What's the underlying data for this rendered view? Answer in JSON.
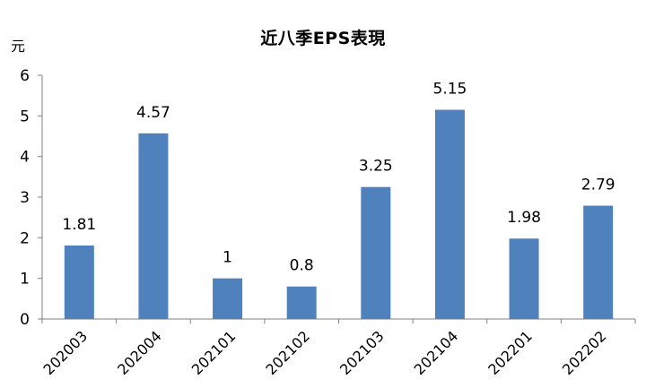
{
  "chart_data": {
    "type": "bar",
    "title": "近八季EPS表現",
    "ylabel": "元",
    "xlabel": "",
    "categories": [
      "202003",
      "202004",
      "202101",
      "202102",
      "202103",
      "202104",
      "202201",
      "202202"
    ],
    "values": [
      1.81,
      4.57,
      1,
      0.8,
      3.25,
      5.15,
      1.98,
      2.79
    ],
    "value_labels": [
      "1.81",
      "4.57",
      "1",
      "0.8",
      "3.25",
      "5.15",
      "1.98",
      "2.79"
    ],
    "ylim": [
      0,
      6
    ],
    "yticks": [
      "0",
      "1",
      "2",
      "3",
      "4",
      "5",
      "6"
    ],
    "grid": false,
    "legend": "none",
    "bar_color": "#4F81BD"
  }
}
